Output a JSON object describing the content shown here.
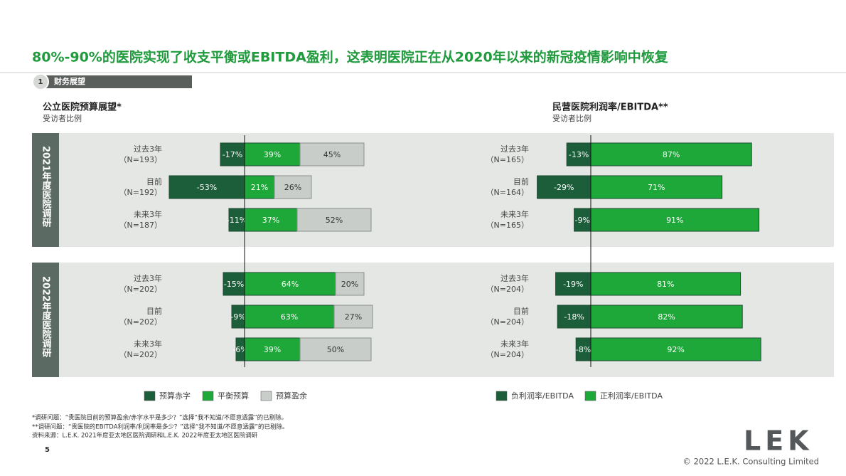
{
  "title": "80%-90%的医院实现了收支平衡或EBITDA盈利，这表明医院正在从2020年以来的新冠疫情影响中恢复",
  "section": {
    "number": "1",
    "label": "财务展望"
  },
  "panels": [
    "2021年度医院调研",
    "2022年度医院调研"
  ],
  "chart_data": [
    {
      "type": "diverging-bar",
      "title": "公立医院预算展望*",
      "subtitle": "受访者比例",
      "categories": [
        [
          "过去3年",
          "（N=193）"
        ],
        [
          "目前",
          "（N=192）"
        ],
        [
          "未来3年",
          "（N=187）"
        ],
        [
          "过去3年",
          "（N=202）"
        ],
        [
          "目前",
          "（N=202）"
        ],
        [
          "未来3年",
          "（N=202）"
        ]
      ],
      "series": [
        {
          "name": "预算赤字",
          "color": "#1d5e3a",
          "values": [
            -17,
            -53,
            -11,
            -15,
            -9,
            -6
          ],
          "value_labels": [
            "-17%",
            "-53%",
            "-11%",
            "-15%",
            "-9%",
            "-6%"
          ]
        },
        {
          "name": "平衡预算",
          "color": "#1fa83a",
          "values": [
            39,
            21,
            37,
            64,
            63,
            39
          ],
          "value_labels": [
            "39%",
            "21%",
            "37%",
            "64%",
            "63%",
            "39%"
          ]
        },
        {
          "name": "预算盈余",
          "color": "#c9cdca",
          "values": [
            45,
            26,
            52,
            20,
            27,
            50
          ],
          "value_labels": [
            "45%",
            "26%",
            "52%",
            "20%",
            "27%",
            "50%"
          ]
        }
      ]
    },
    {
      "type": "diverging-bar",
      "title": "民营医院利润率/EBITDA**",
      "subtitle": "受访者比例",
      "categories": [
        [
          "过去3年",
          "（N=165）"
        ],
        [
          "目前",
          "（N=164）"
        ],
        [
          "未来3年",
          "（N=165）"
        ],
        [
          "过去3年",
          "（N=204）"
        ],
        [
          "目前",
          "（N=204）"
        ],
        [
          "未来3年",
          "（N=204）"
        ]
      ],
      "series": [
        {
          "name": "负利润率/EBITDA",
          "color": "#1d5e3a",
          "values": [
            -13,
            -29,
            -9,
            -19,
            -18,
            -8
          ],
          "value_labels": [
            "-13%",
            "-29%",
            "-9%",
            "-19%",
            "-18%",
            "-8%"
          ]
        },
        {
          "name": "正利润率/EBITDA",
          "color": "#1fa83a",
          "values": [
            87,
            71,
            91,
            81,
            82,
            92
          ],
          "value_labels": [
            "87%",
            "71%",
            "91%",
            "81%",
            "82%",
            "92%"
          ]
        }
      ]
    }
  ],
  "footnotes": [
    "*调研问题：“贵医院目前的预算盈余/赤字水平是多少？”选择“我不知道/不愿意透露”的已剔除。",
    "**调研问题：“贵医院的EBITDA利润率/利润率是多少？”选择“我不知道/不愿意透露”的已剔除。",
    "资料来源：L.E.K. 2021年度亚太地区医院调研和L.E.K. 2022年度亚太地区医院调研"
  ],
  "page_number": "5",
  "logo": "LEK",
  "copyright": "© 2022 L.E.K. Consulting Limited"
}
